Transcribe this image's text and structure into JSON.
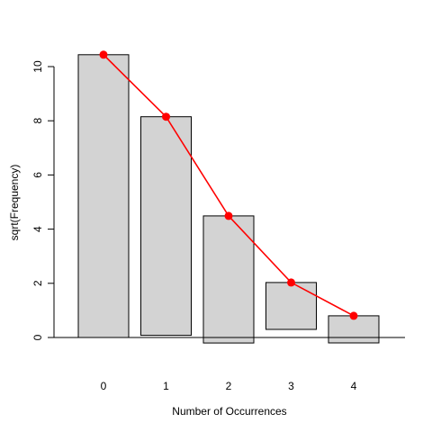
{
  "chart_data": {
    "type": "bar",
    "subtype": "hanging-rootogram",
    "xlabel": "Number of Occurrences",
    "ylabel": "sqrt(Frequency)",
    "categories": [
      "0",
      "1",
      "2",
      "3",
      "4"
    ],
    "bars": [
      {
        "category": "0",
        "bottom": 0.0,
        "top": 10.44
      },
      {
        "category": "1",
        "bottom": 0.08,
        "top": 8.15
      },
      {
        "category": "2",
        "bottom": -0.2,
        "top": 4.49
      },
      {
        "category": "3",
        "bottom": 0.3,
        "top": 2.03
      },
      {
        "category": "4",
        "bottom": -0.2,
        "top": 0.8
      }
    ],
    "fitted_values": [
      10.44,
      8.15,
      4.49,
      2.03,
      0.8
    ],
    "yticks": [
      0,
      2,
      4,
      6,
      8,
      10
    ],
    "ytick_labels": [
      "0",
      "2",
      "4",
      "6",
      "8",
      "10"
    ],
    "ylim": [
      -1.2,
      11.5
    ],
    "grid": false,
    "colors": {
      "bar_fill": "#d3d3d3",
      "bar_stroke": "#000000",
      "fit": "#ff0000"
    }
  }
}
